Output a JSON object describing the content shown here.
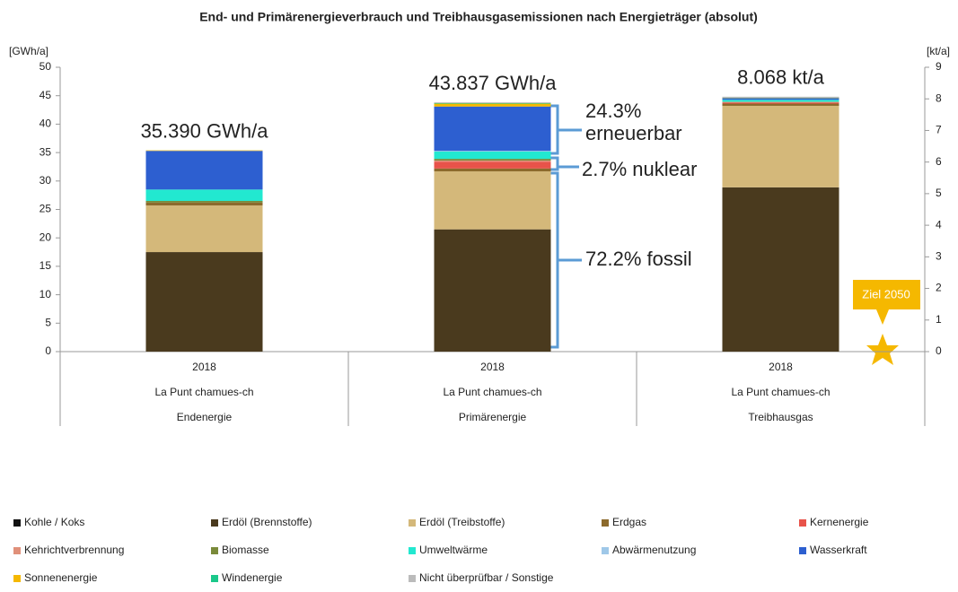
{
  "chart_data": {
    "type": "stacked_bar",
    "title": "End- und Primärenergieverbrauch und Treibhausgasemissionen nach Energieträger (absolut)",
    "ylabel": "[GWh/a]",
    "y2label": "[kt/a]",
    "categories": [
      [
        "2018",
        "La Punt chamues-ch",
        "Endenergie"
      ],
      [
        "2018",
        "La Punt chamues-ch",
        "Primärenergie"
      ],
      [
        "2018",
        "La Punt chamues-ch",
        "Treibhausgas"
      ]
    ],
    "bar_axes": [
      "y",
      "y",
      "y2"
    ],
    "total_labels": [
      "35.390 GWh/a",
      "43.837 GWh/a",
      "8.068 kt/a"
    ],
    "ylim": [
      0,
      50
    ],
    "yticks": [
      0,
      5,
      10,
      15,
      20,
      25,
      30,
      35,
      40,
      45,
      50
    ],
    "y2lim": [
      0,
      9
    ],
    "y2ticks": [
      0,
      1,
      2,
      3,
      4,
      5,
      6,
      7,
      8,
      9
    ],
    "series": [
      {
        "name": "Kohle / Koks",
        "color": "#111111",
        "values": [
          0,
          0,
          0
        ]
      },
      {
        "name": "Erdöl (Brennstoffe)",
        "color": "#4a3a1e",
        "values": [
          17.5,
          21.5,
          5.2
        ]
      },
      {
        "name": "Erdöl (Treibstoffe)",
        "color": "#d4b87a",
        "values": [
          8.2,
          10.2,
          2.58
        ]
      },
      {
        "name": "Erdgas",
        "color": "#8c6a2c",
        "values": [
          0.5,
          0.5,
          0.07
        ]
      },
      {
        "name": "Kernenergie",
        "color": "#e8534a",
        "values": [
          0,
          1.2,
          0.03
        ]
      },
      {
        "name": "Kehrichtverbrennung",
        "color": "#e0907a",
        "values": [
          0,
          0.2,
          0.02
        ]
      },
      {
        "name": "Biomasse",
        "color": "#7a8a3a",
        "values": [
          0.3,
          0.3,
          0.01
        ]
      },
      {
        "name": "Umweltwärme",
        "color": "#22e8d0",
        "values": [
          2.0,
          1.3,
          0.06
        ]
      },
      {
        "name": "Abwärmenutzung",
        "color": "#9fc8e8",
        "values": [
          0,
          0.1,
          0
        ]
      },
      {
        "name": "Wasserkraft",
        "color": "#2d5fd0",
        "values": [
          6.8,
          7.8,
          0.05
        ]
      },
      {
        "name": "Sonnenenergie",
        "color": "#f5b800",
        "values": [
          0.09,
          0.5,
          0.01
        ]
      },
      {
        "name": "Windenergie",
        "color": "#1ac88a",
        "values": [
          0,
          0.1,
          0.008
        ]
      },
      {
        "name": "Nicht überprüfbar / Sonstige",
        "color": "#bbbbbb",
        "values": [
          0,
          0.137,
          0.03
        ]
      }
    ],
    "annotations": [
      "24.3%",
      "erneuerbar",
      "2.7% nuklear",
      "72.2% fossil",
      "Ziel 2050"
    ]
  }
}
